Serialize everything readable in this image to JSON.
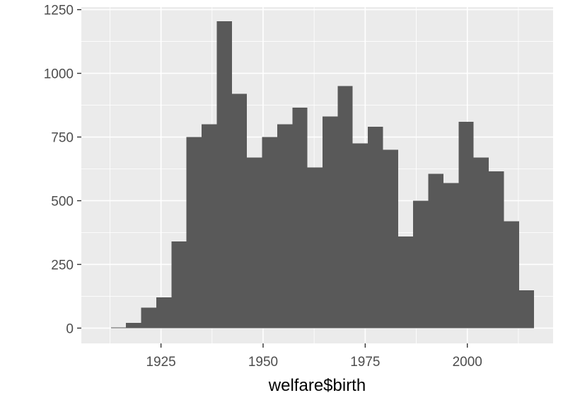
{
  "colors": {
    "panel_background": "#EBEBEB",
    "grid_major": "#FFFFFF",
    "bar_fill": "#595959",
    "tick_text": "#4D4D4D",
    "tick_mark": "#333333"
  },
  "chart_data": {
    "type": "bar",
    "variant": "histogram",
    "title": "",
    "xlabel": "welfare$birth",
    "ylabel": "",
    "grid": true,
    "xlim": [
      1905.5,
      2021
    ],
    "ylim": [
      -60,
      1260
    ],
    "x_ticks": [
      1925,
      1950,
      1975,
      2000
    ],
    "x_tick_labels": [
      "1925",
      "1950",
      "1975",
      "2000"
    ],
    "y_ticks": [
      0,
      250,
      500,
      750,
      1000,
      1250
    ],
    "y_tick_labels": [
      "0",
      "250",
      "500",
      "750",
      "1000",
      "1250"
    ],
    "bin_width": 3.7,
    "bin_centers": [
      1914.6,
      1918.3,
      1922.0,
      1925.7,
      1929.4,
      1933.1,
      1936.8,
      1940.5,
      1944.2,
      1947.9,
      1951.6,
      1955.3,
      1959.0,
      1962.7,
      1966.4,
      1970.1,
      1973.8,
      1977.5,
      1981.2,
      1984.9,
      1988.6,
      1992.3,
      1996.0,
      1999.7,
      2003.4,
      2007.1,
      2010.8,
      2014.5
    ],
    "values": [
      3,
      20,
      80,
      120,
      340,
      750,
      800,
      1205,
      920,
      670,
      750,
      800,
      865,
      630,
      830,
      950,
      725,
      790,
      700,
      360,
      500,
      605,
      570,
      810,
      670,
      615,
      420,
      148
    ]
  }
}
